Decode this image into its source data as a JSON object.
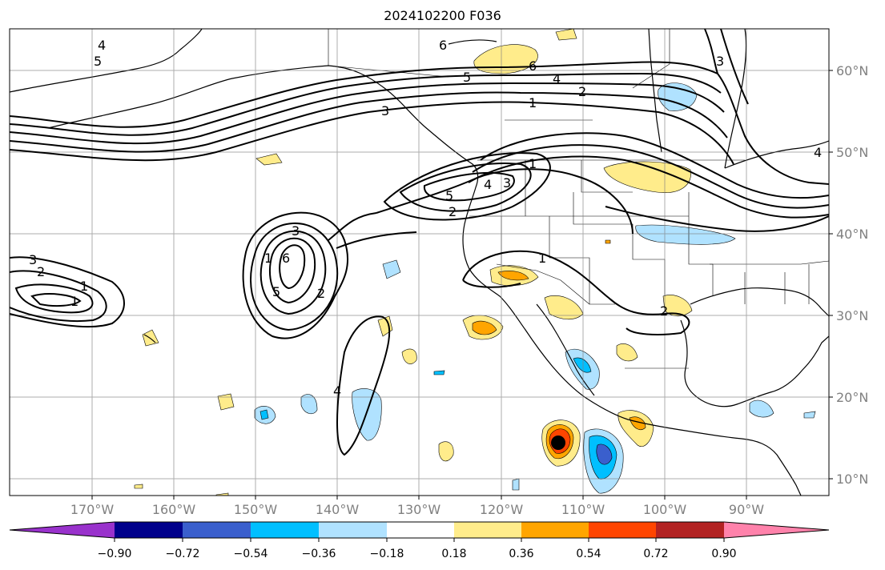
{
  "title": "2024102200 F036",
  "lat_labels": [
    "60°N",
    "50°N",
    "40°N",
    "30°N",
    "20°N",
    "10°N"
  ],
  "lon_labels": [
    "170°W",
    "160°W",
    "150°W",
    "140°W",
    "130°W",
    "120°W",
    "110°W",
    "100°W",
    "90°W"
  ],
  "colorbar": {
    "colors": [
      "#9932cc",
      "#00008b",
      "#3a5fcd",
      "#00bfff",
      "#b0e2ff",
      "#ffffff",
      "#ffec8b",
      "#ffa500",
      "#ff4500",
      "#b22222",
      "#ff82ab"
    ],
    "tick_labels": [
      "−0.90",
      "−0.72",
      "−0.54",
      "−0.36",
      "−0.18",
      "0.18",
      "0.36",
      "0.54",
      "0.72",
      "0.90"
    ]
  },
  "contour_labels": [
    "6",
    "6",
    "5",
    "4",
    "2",
    "1",
    "5",
    "4",
    "3",
    "2",
    "1",
    "5",
    "4",
    "3",
    "1",
    "3",
    "2",
    "1",
    "6",
    "5",
    "4",
    "3",
    "2",
    "1",
    "1",
    "2",
    "3",
    "4",
    "1",
    "1",
    "5",
    "6"
  ]
}
